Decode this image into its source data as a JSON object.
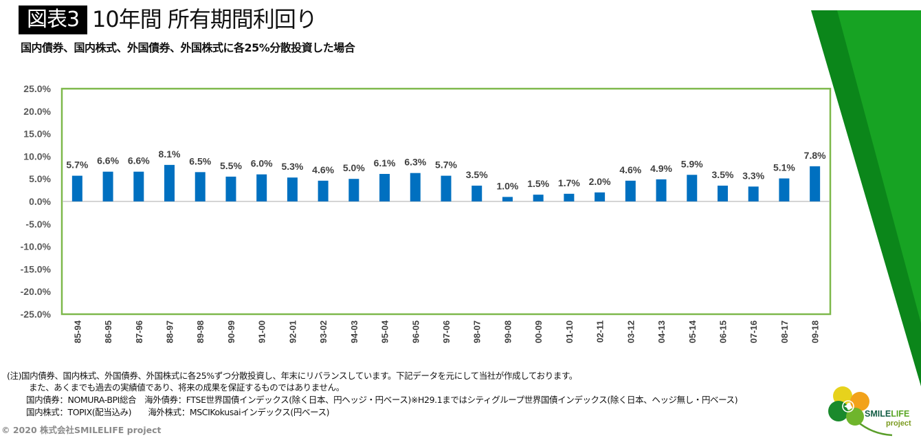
{
  "header": {
    "figure_tag": "図表3",
    "title": "10年間 所有期間利回り",
    "subtitle": "国内債券、国内株式、外国債券、外国株式に各25%分散投資した場合"
  },
  "chart_data": {
    "type": "bar",
    "title": "10年間 所有期間利回り",
    "subtitle": "国内債券、国内株式、外国債券、外国株式に各25%分散投資した場合",
    "xlabel": "",
    "ylabel": "",
    "categories": [
      "85-94",
      "86-95",
      "87-96",
      "88-97",
      "89-98",
      "90-99",
      "91-00",
      "92-01",
      "93-02",
      "94-03",
      "95-04",
      "96-05",
      "97-06",
      "98-07",
      "99-08",
      "00-09",
      "01-10",
      "02-11",
      "03-12",
      "04-13",
      "05-14",
      "06-15",
      "07-16",
      "08-17",
      "09-18"
    ],
    "values": [
      5.7,
      6.6,
      6.6,
      8.1,
      6.5,
      5.5,
      6.0,
      5.3,
      4.6,
      5.0,
      6.1,
      6.3,
      5.7,
      3.5,
      1.0,
      1.5,
      1.7,
      2.0,
      4.6,
      4.9,
      5.9,
      3.5,
      3.3,
      5.1,
      7.8
    ],
    "data_labels": [
      "5.7%",
      "6.6%",
      "6.6%",
      "8.1%",
      "6.5%",
      "5.5%",
      "6.0%",
      "5.3%",
      "4.6%",
      "5.0%",
      "6.1%",
      "6.3%",
      "5.7%",
      "3.5%",
      "1.0%",
      "1.5%",
      "1.7%",
      "2.0%",
      "4.6%",
      "4.9%",
      "5.9%",
      "3.5%",
      "3.3%",
      "5.1%",
      "7.8%"
    ],
    "unit": "%",
    "ylim": [
      -25,
      25
    ],
    "yticks": [
      25,
      20,
      15,
      10,
      5,
      0,
      -5,
      -10,
      -15,
      -20,
      -25
    ],
    "ytick_labels": [
      "25.0%",
      "20.0%",
      "15.0%",
      "10.0%",
      "5.0%",
      "0.0%",
      "-5.0%",
      "-10.0%",
      "-15.0%",
      "-20.0%",
      "-25.0%"
    ],
    "grid": false,
    "legend": "none",
    "colors": {
      "bar": "#0070c0",
      "plot_border": "#7db84a",
      "zero_line": "#d4d4d4",
      "label_text": "#404040",
      "axis_text": "#595959"
    }
  },
  "notes": [
    "(注)国内債券、国内株式、外国債券、外国株式に各25%ずつ分散投資し、年末にリバランスしています。下記データを元にして当社が作成しております。",
    "また、あくまでも過去の実績値であり、将来の成果を保証するものではありません。",
    "国内債券：NOMURA-BPI総合　海外債券：FTSE世界国債インデックス(除く日本、円ヘッジ・円ベース)※H29.1まではシティグループ世界国債インデックス(除く日本、ヘッジ無し・円ベース)",
    "国内株式：TOPIX(配当込み)　　海外株式：MSCIKokusaiインデックス(円ベース)"
  ],
  "copyright": "© 2020 株式会社SMILELIFE project",
  "logo": {
    "word_smile": "SMILE",
    "word_life": "LIFE",
    "word_project": "project"
  },
  "decor": {
    "dark_green": "#0b861a",
    "light_green": "#17a323"
  }
}
